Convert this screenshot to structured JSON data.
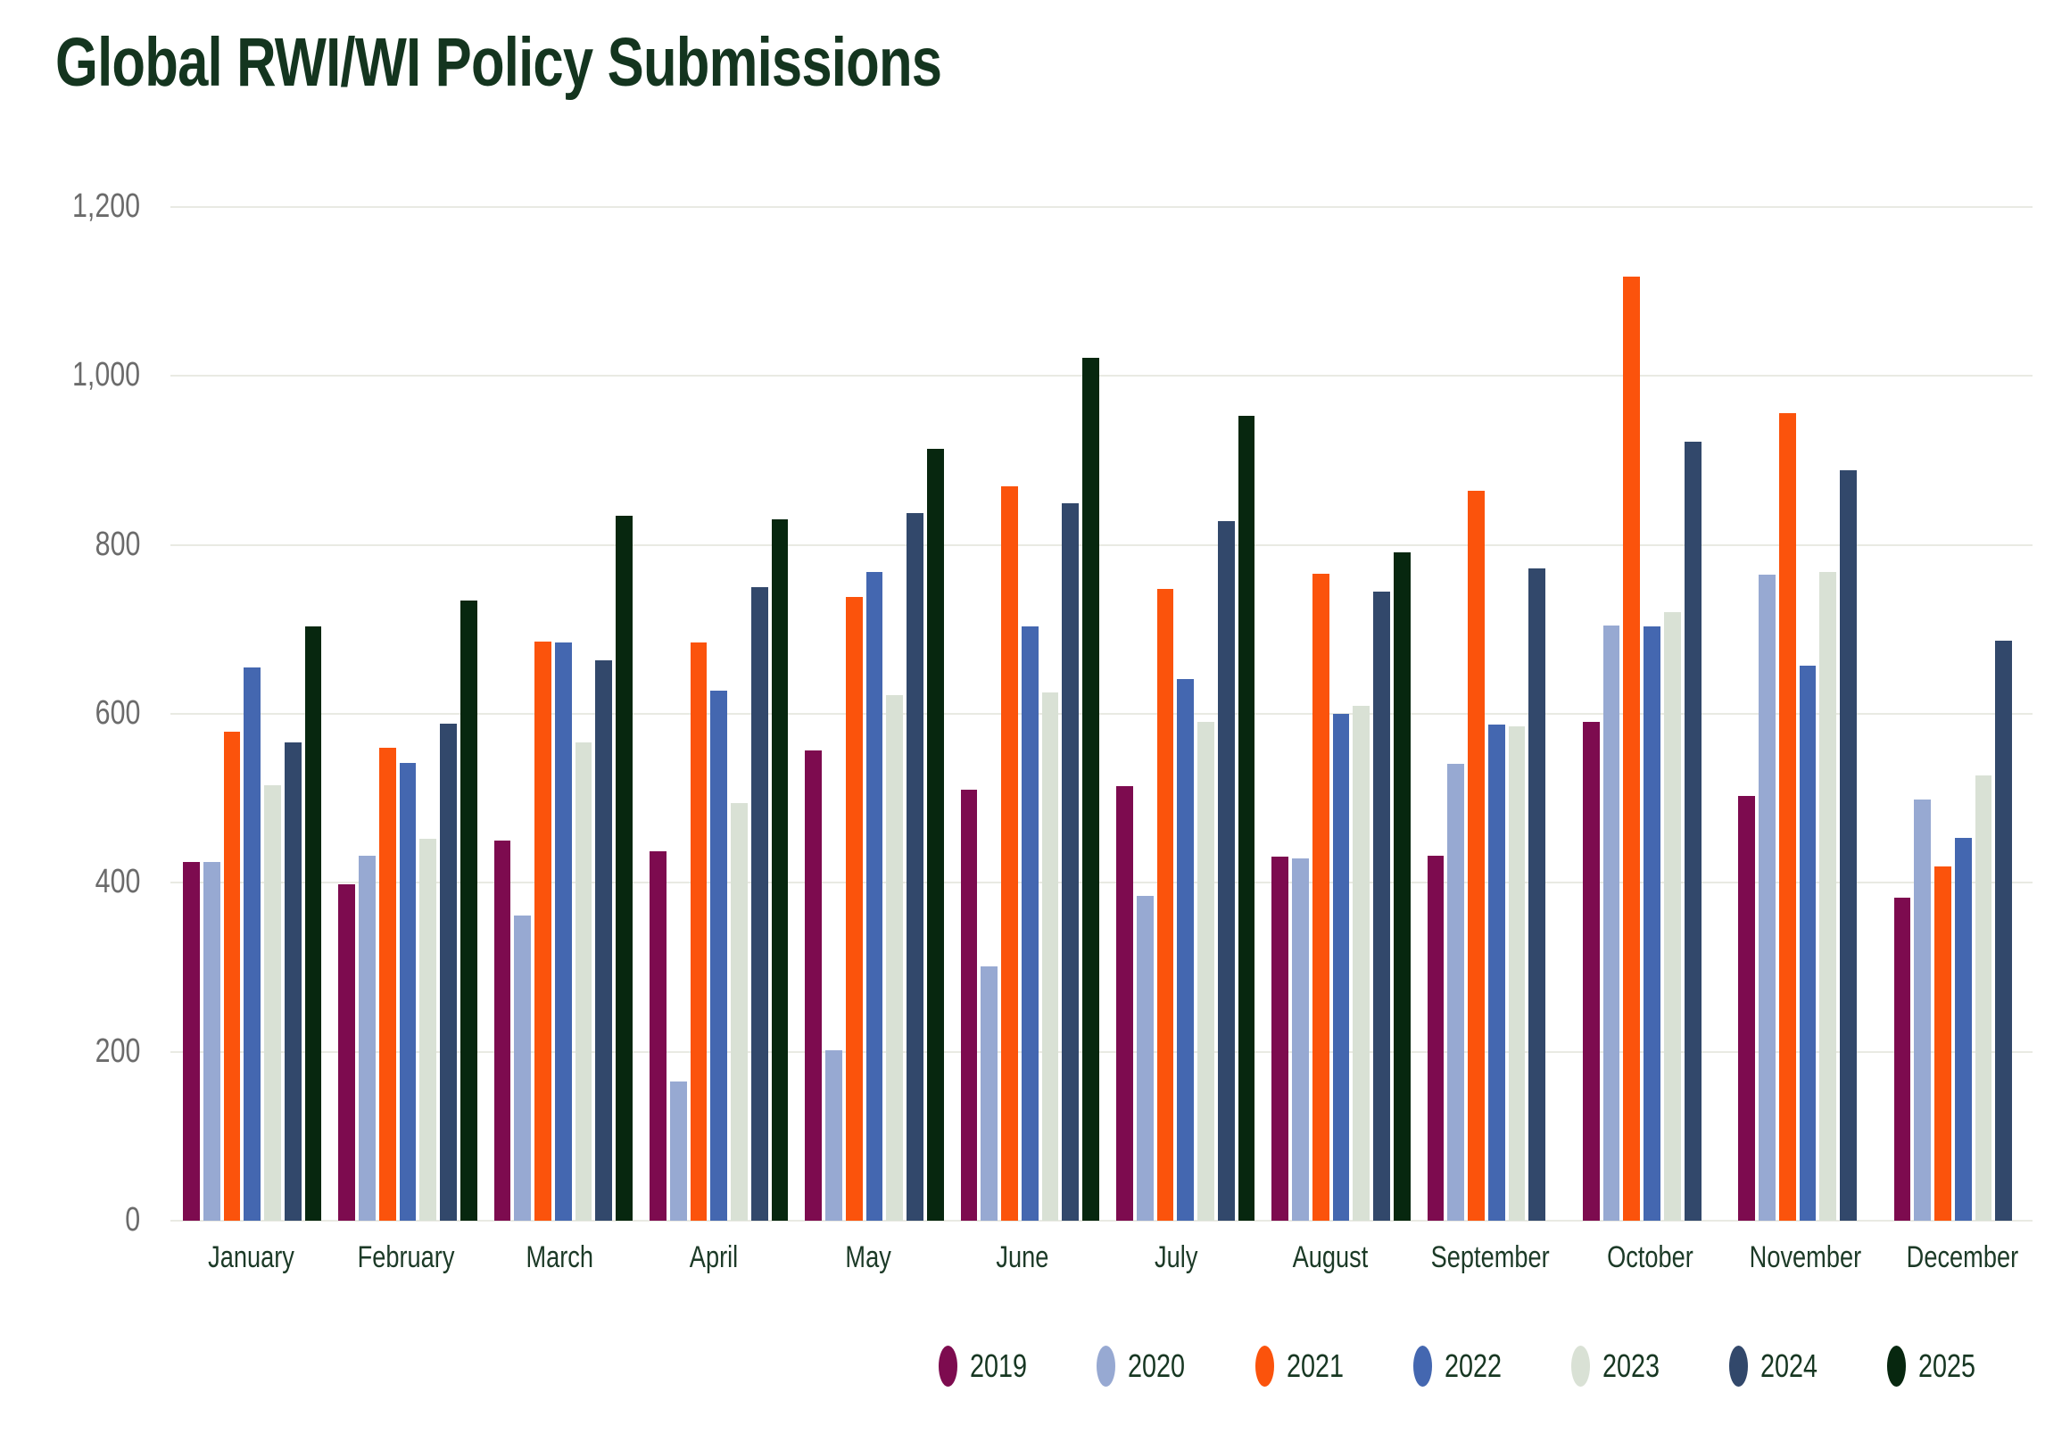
{
  "chart_data": {
    "type": "bar",
    "title": "Global RWI/WI Policy Submissions",
    "xlabel": "",
    "ylabel": "",
    "ylim": [
      0,
      1200
    ],
    "yticks": [
      0,
      200,
      400,
      600,
      800,
      1000,
      1200
    ],
    "grid": true,
    "legend_position": "bottom-right",
    "categories": [
      "January",
      "February",
      "March",
      "April",
      "May",
      "June",
      "July",
      "August",
      "September",
      "October",
      "November",
      "December"
    ],
    "series": [
      {
        "name": "2019",
        "color": "#7d0b4f",
        "values": [
          425,
          398,
          450,
          437,
          557,
          510,
          514,
          431,
          432,
          590,
          503,
          382
        ]
      },
      {
        "name": "2020",
        "color": "#97a9d2",
        "values": [
          425,
          432,
          361,
          165,
          202,
          301,
          385,
          429,
          541,
          705,
          765,
          499
        ]
      },
      {
        "name": "2021",
        "color": "#fb530c",
        "values": [
          579,
          560,
          686,
          685,
          738,
          869,
          748,
          766,
          864,
          1118,
          956,
          419
        ]
      },
      {
        "name": "2022",
        "color": "#4467b0",
        "values": [
          655,
          542,
          685,
          628,
          768,
          704,
          641,
          600,
          587,
          704,
          657,
          453
        ]
      },
      {
        "name": "2023",
        "color": "#d9e1d5",
        "values": [
          515,
          452,
          566,
          494,
          622,
          625,
          590,
          609,
          585,
          720,
          768,
          527
        ]
      },
      {
        "name": "2024",
        "color": "#32486b",
        "values": [
          566,
          588,
          663,
          750,
          838,
          849,
          828,
          745,
          772,
          922,
          888,
          687
        ]
      },
      {
        "name": "2025",
        "color": "#07270f",
        "values": [
          704,
          734,
          834,
          830,
          914,
          1021,
          953,
          791,
          null,
          null,
          null,
          null
        ]
      }
    ],
    "colors": {
      "background": "#ffffff",
      "gridline": "#e9eae3",
      "title_text": "#14351f",
      "axis_tick_text": "#6b6b6b",
      "month_label_text": "#1c3a27",
      "legend_text": "#173722"
    }
  }
}
